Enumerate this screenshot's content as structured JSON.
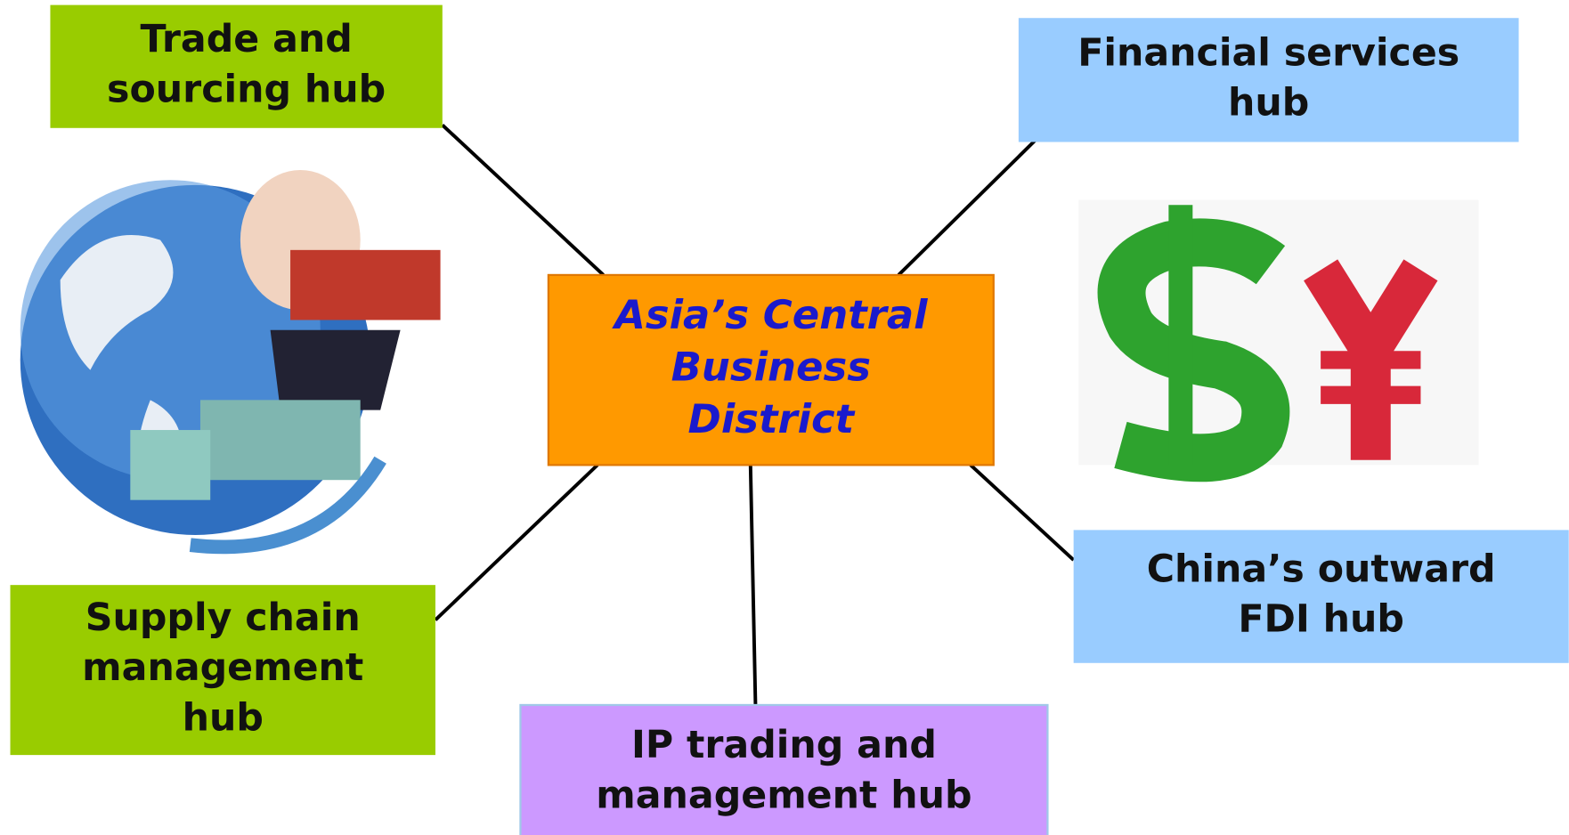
{
  "nodes": [
    {
      "lines": [
        "Trade and",
        "sourcing hub"
      ]
    },
    {
      "lines": [
        "Financial services",
        "hub"
      ]
    },
    {
      "lines": [
        "Asia’s Central",
        "Business",
        "District"
      ]
    },
    {
      "lines": [
        "Supply chain",
        "management",
        "hub"
      ]
    },
    {
      "lines": [
        "China’s outward",
        "FDI hub"
      ]
    },
    {
      "lines": [
        "IP trading and",
        "management hub"
      ]
    }
  ]
}
